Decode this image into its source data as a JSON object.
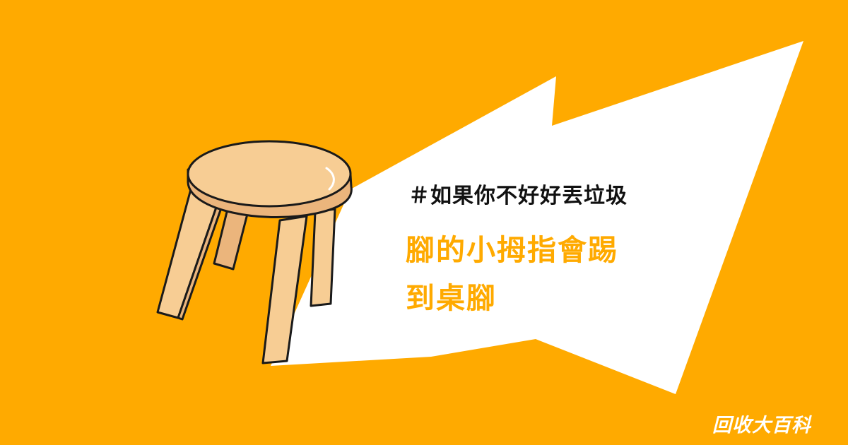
{
  "colors": {
    "background": "#FFAA00",
    "burst": "#FFFFFF",
    "title_accent": "#FFAA00",
    "headline": "#111111",
    "brand": "#FFFFFF",
    "stool_wood": "#F7CD94",
    "stool_shadow": "#EBB57C",
    "stool_outline": "#1A1A1A"
  },
  "illustration": {
    "icon": "stool-icon"
  },
  "headline": "＃如果你不好好丟垃圾",
  "title": {
    "line1": "腳的小拇指會踢",
    "line2": "到桌腳"
  },
  "brand": "回收大百科"
}
